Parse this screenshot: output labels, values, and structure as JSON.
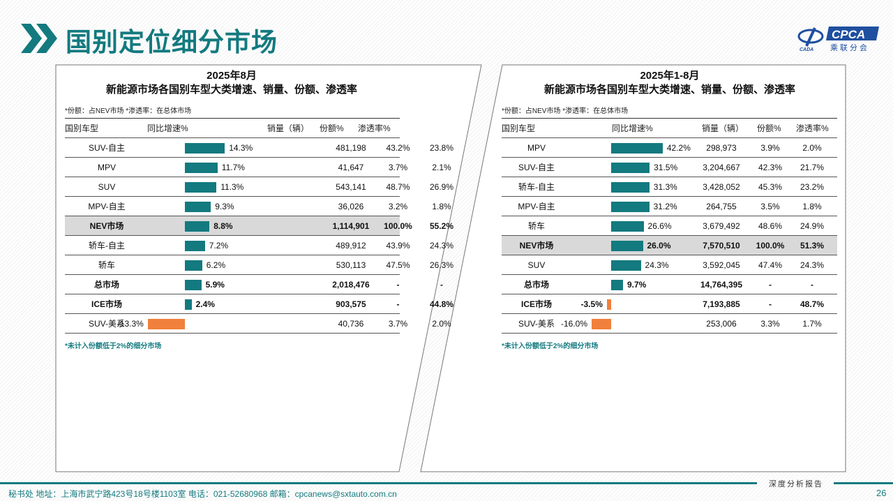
{
  "page": {
    "title": "国别定位细分市场",
    "number": "26",
    "tag": "深度分析报告",
    "footer": "秘书处   地址：上海市武宁路423号18号楼1103室  电话：021-52680968   邮箱：cpcanews@sxtauto.com.cn"
  },
  "logo": {
    "text": "CPCA",
    "sub": "乘联分会",
    "mark": "CADA"
  },
  "colors": {
    "accent": "#137a7f",
    "positive_bar": "#137a7f",
    "negative_bar": "#f0803c",
    "highlight_row": "#d9d9d9"
  },
  "panels": [
    {
      "title": "2025年8月",
      "subtitle": "新能源市场各国别车型大类增速、销量、份额、渗透率",
      "note": "*份额：占NEV市场   *渗透率：在总体市场",
      "headers": [
        "国别车型",
        "同比增速%",
        "销量（辆）",
        "份额%",
        "渗透率%"
      ],
      "footnote": "*未计入份额低于2%的细分市场",
      "rows": [
        {
          "name": "SUV-自主",
          "growth": 14.3,
          "growth_label": "14.3%",
          "sales": "481,198",
          "share": "43.2%",
          "pen": "23.8%"
        },
        {
          "name": "MPV",
          "growth": 11.7,
          "growth_label": "11.7%",
          "sales": "41,647",
          "share": "3.7%",
          "pen": "2.1%"
        },
        {
          "name": "SUV",
          "growth": 11.3,
          "growth_label": "11.3%",
          "sales": "543,141",
          "share": "48.7%",
          "pen": "26.9%"
        },
        {
          "name": "MPV-自主",
          "growth": 9.3,
          "growth_label": "9.3%",
          "sales": "36,026",
          "share": "3.2%",
          "pen": "1.8%"
        },
        {
          "name": "NEV市场",
          "growth": 8.8,
          "growth_label": "8.8%",
          "sales": "1,114,901",
          "share": "100.0%",
          "pen": "55.2%",
          "bold": true,
          "highlight": true
        },
        {
          "name": "轿车-自主",
          "growth": 7.2,
          "growth_label": "7.2%",
          "sales": "489,912",
          "share": "43.9%",
          "pen": "24.3%"
        },
        {
          "name": "轿车",
          "growth": 6.2,
          "growth_label": "6.2%",
          "sales": "530,113",
          "share": "47.5%",
          "pen": "26.3%"
        },
        {
          "name": "总市场",
          "growth": 5.9,
          "growth_label": "5.9%",
          "sales": "2,018,476",
          "share": "-",
          "pen": "-",
          "bold": true
        },
        {
          "name": "ICE市场",
          "growth": 2.4,
          "growth_label": "2.4%",
          "sales": "903,575",
          "share": "-",
          "pen": "44.8%",
          "bold": true
        },
        {
          "name": "SUV-美系",
          "growth": -13.3,
          "growth_label": "-13.3%",
          "sales": "40,736",
          "share": "3.7%",
          "pen": "2.0%"
        }
      ]
    },
    {
      "title": "2025年1-8月",
      "subtitle": "新能源市场各国别车型大类增速、销量、份额、渗透率",
      "note": "*份额：占NEV市场   *渗透率：在总体市场",
      "headers": [
        "国别车型",
        "同比增速%",
        "销量（辆）",
        "份额%",
        "渗透率%"
      ],
      "footnote": "*未计入份额低于2%的细分市场",
      "rows": [
        {
          "name": "MPV",
          "growth": 42.2,
          "growth_label": "42.2%",
          "sales": "298,973",
          "share": "3.9%",
          "pen": "2.0%"
        },
        {
          "name": "SUV-自主",
          "growth": 31.5,
          "growth_label": "31.5%",
          "sales": "3,204,667",
          "share": "42.3%",
          "pen": "21.7%"
        },
        {
          "name": "轿车-自主",
          "growth": 31.3,
          "growth_label": "31.3%",
          "sales": "3,428,052",
          "share": "45.3%",
          "pen": "23.2%"
        },
        {
          "name": "MPV-自主",
          "growth": 31.2,
          "growth_label": "31.2%",
          "sales": "264,755",
          "share": "3.5%",
          "pen": "1.8%"
        },
        {
          "name": "轿车",
          "growth": 26.6,
          "growth_label": "26.6%",
          "sales": "3,679,492",
          "share": "48.6%",
          "pen": "24.9%"
        },
        {
          "name": "NEV市场",
          "growth": 26.0,
          "growth_label": "26.0%",
          "sales": "7,570,510",
          "share": "100.0%",
          "pen": "51.3%",
          "bold": true,
          "highlight": true
        },
        {
          "name": "SUV",
          "growth": 24.3,
          "growth_label": "24.3%",
          "sales": "3,592,045",
          "share": "47.4%",
          "pen": "24.3%"
        },
        {
          "name": "总市场",
          "growth": 9.7,
          "growth_label": "9.7%",
          "sales": "14,764,395",
          "share": "-",
          "pen": "-",
          "bold": true
        },
        {
          "name": "ICE市场",
          "growth": -3.5,
          "growth_label": "-3.5%",
          "sales": "7,193,885",
          "share": "-",
          "pen": "48.7%",
          "bold": true
        },
        {
          "name": "SUV-美系",
          "growth": -16.0,
          "growth_label": "-16.0%",
          "sales": "253,006",
          "share": "3.3%",
          "pen": "1.7%"
        }
      ]
    }
  ]
}
